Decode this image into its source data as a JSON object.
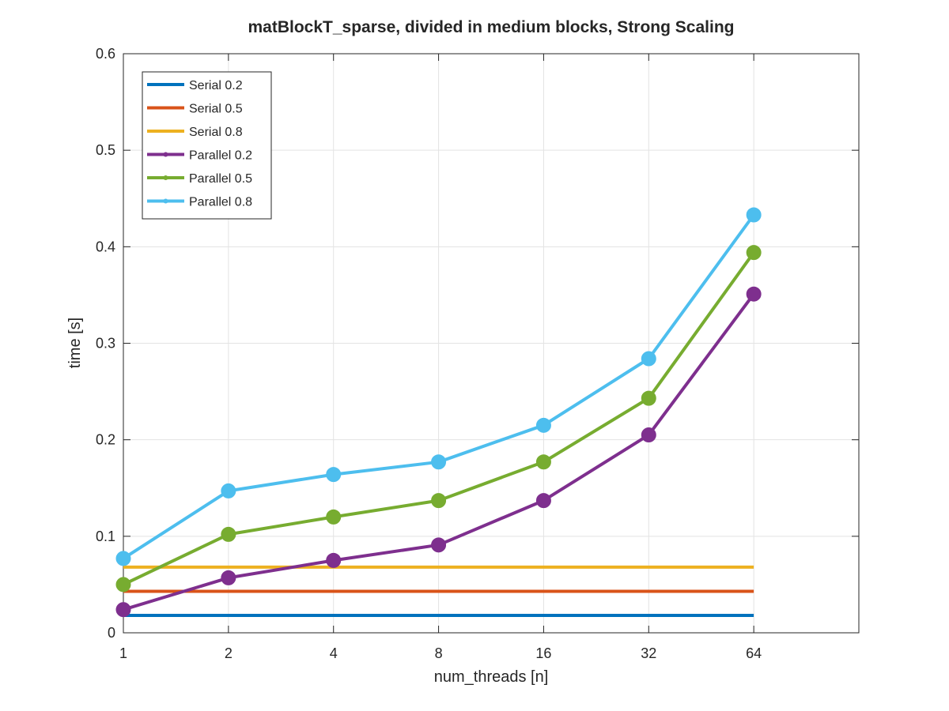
{
  "chart_data": {
    "type": "line",
    "title": "matBlockT_sparse, divided in medium blocks, Strong Scaling",
    "xlabel": "num_threads [n]",
    "ylabel": "time [s]",
    "x_scale": "log2",
    "x": [
      1,
      2,
      4,
      8,
      16,
      32,
      64
    ],
    "x_tick_labels": [
      "1",
      "2",
      "4",
      "8",
      "16",
      "32",
      "64"
    ],
    "xlim": [
      1,
      128
    ],
    "ylim": [
      0,
      0.6
    ],
    "y_ticks": [
      0,
      0.1,
      0.2,
      0.3,
      0.4,
      0.5,
      0.6
    ],
    "y_tick_labels": [
      "0",
      "0.1",
      "0.2",
      "0.3",
      "0.4",
      "0.5",
      "0.6"
    ],
    "grid": true,
    "legend_position": "top-left",
    "series": [
      {
        "name": "Serial 0.2",
        "color": "#0072BD",
        "marker": false,
        "values": [
          0.018,
          0.018,
          0.018,
          0.018,
          0.018,
          0.018,
          0.018
        ]
      },
      {
        "name": "Serial 0.5",
        "color": "#D95319",
        "marker": false,
        "values": [
          0.043,
          0.043,
          0.043,
          0.043,
          0.043,
          0.043,
          0.043
        ]
      },
      {
        "name": "Serial 0.8",
        "color": "#EDB120",
        "marker": false,
        "values": [
          0.068,
          0.068,
          0.068,
          0.068,
          0.068,
          0.068,
          0.068
        ]
      },
      {
        "name": "Parallel 0.2",
        "color": "#7E2F8E",
        "marker": true,
        "values": [
          0.024,
          0.057,
          0.075,
          0.091,
          0.137,
          0.205,
          0.351
        ]
      },
      {
        "name": "Parallel 0.5",
        "color": "#77AC30",
        "marker": true,
        "values": [
          0.05,
          0.102,
          0.12,
          0.137,
          0.177,
          0.243,
          0.394
        ]
      },
      {
        "name": "Parallel 0.8",
        "color": "#4DBEEE",
        "marker": true,
        "values": [
          0.077,
          0.147,
          0.164,
          0.177,
          0.215,
          0.284,
          0.433
        ]
      }
    ]
  }
}
